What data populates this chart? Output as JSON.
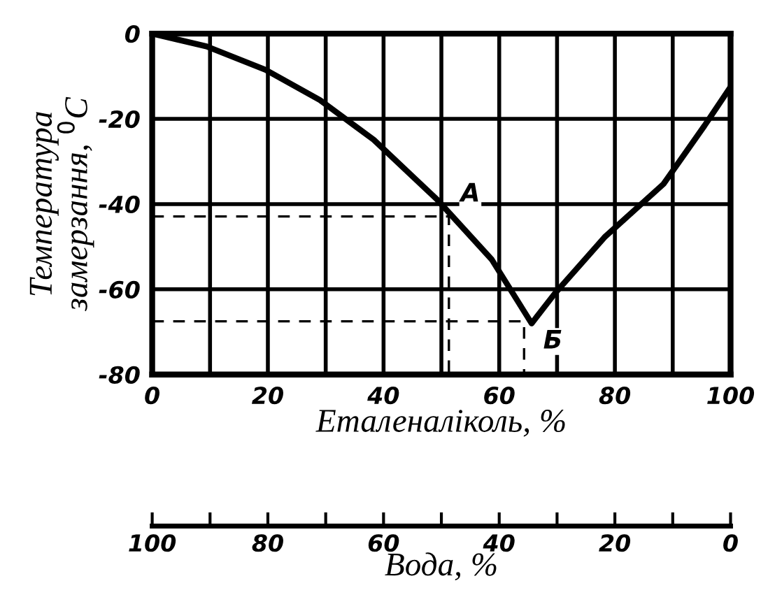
{
  "chart_data": {
    "type": "line",
    "xlabel": "Еталеналіколь, %",
    "ylabel": "Температура\nзамерзання, $^{0}$C",
    "x2label": "Вода, %",
    "series": [
      {
        "color": "#000000",
        "x": [
          0,
          9.4,
          19.6,
          29,
          38.3,
          49.3,
          58.7,
          65.6,
          69.6,
          78.2,
          88.4,
          95.5,
          99.8
        ],
        "values": [
          0,
          -3,
          -8.5,
          -15.6,
          -24.9,
          -39,
          -53,
          -68,
          -61,
          -47.8,
          -35.3,
          -21.6,
          -12.9
        ]
      },
      {
        "color": "#000000",
        "line_style": "dashed",
        "x": [
          0,
          51.3,
          51.3
        ],
        "values": [
          -42.9,
          -42.9,
          -80
        ]
      },
      {
        "color": "#000000",
        "line_style": "dashed",
        "x": [
          0,
          64.3,
          64.3
        ],
        "values": [
          -67.5,
          -67.5,
          -80
        ]
      }
    ],
    "annotations": [
      {
        "text": "А",
        "x": 51.3,
        "y": -42.9
      },
      {
        "text": "Б",
        "x": 65.6,
        "y": -68
      }
    ],
    "xlim": [
      0,
      100
    ],
    "xticks": [
      0,
      20,
      40,
      60,
      80,
      100
    ],
    "ylim": [
      -80,
      0
    ],
    "yticks": [
      0,
      -20,
      -40,
      -60,
      -80
    ],
    "x2lim": [
      100,
      0
    ],
    "x2ticks": [
      100,
      {
        "value": 90,
        "label": null
      },
      80,
      {
        "value": 70,
        "label": null
      },
      60,
      {
        "value": 50,
        "label": null
      },
      40,
      {
        "value": 30,
        "label": null
      },
      20,
      {
        "value": 10,
        "label": null
      },
      0
    ],
    "grid": true,
    "legend": false,
    "marker": "none",
    "line_style": "solid"
  }
}
